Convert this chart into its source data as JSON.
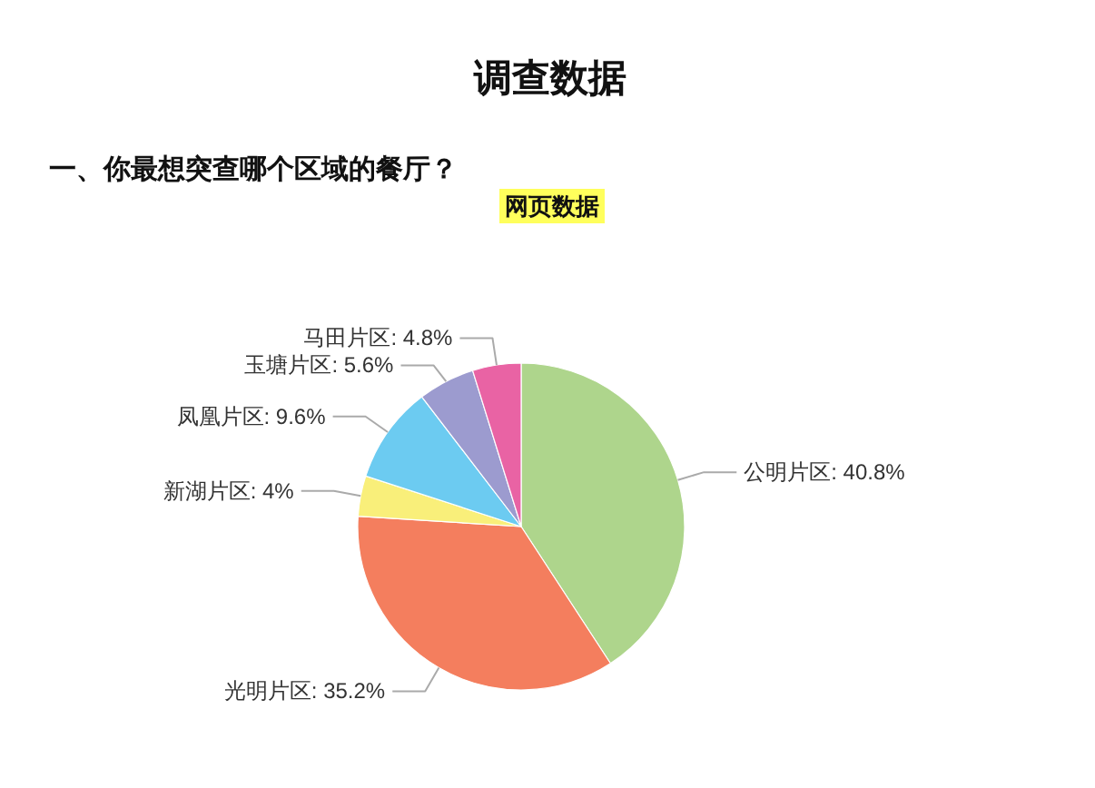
{
  "chart_data": {
    "type": "pie",
    "title": "调查数据",
    "subtitle": "一、你最想突查哪个区域的餐厅？",
    "annotations": [
      "网页数据"
    ],
    "categories": [
      "公明片区",
      "光明片区",
      "新湖片区",
      "凤凰片区",
      "玉塘片区",
      "马田片区"
    ],
    "values": [
      40.8,
      35.2,
      4,
      9.6,
      5.6,
      4.8
    ],
    "value_labels": [
      "40.8%",
      "35.2%",
      "4%",
      "9.6%",
      "5.6%",
      "4.8%"
    ],
    "colors": [
      "#aed58c",
      "#f47e5e",
      "#f9ef7a",
      "#6ccbf1",
      "#9c9bcf",
      "#e963a4"
    ]
  }
}
